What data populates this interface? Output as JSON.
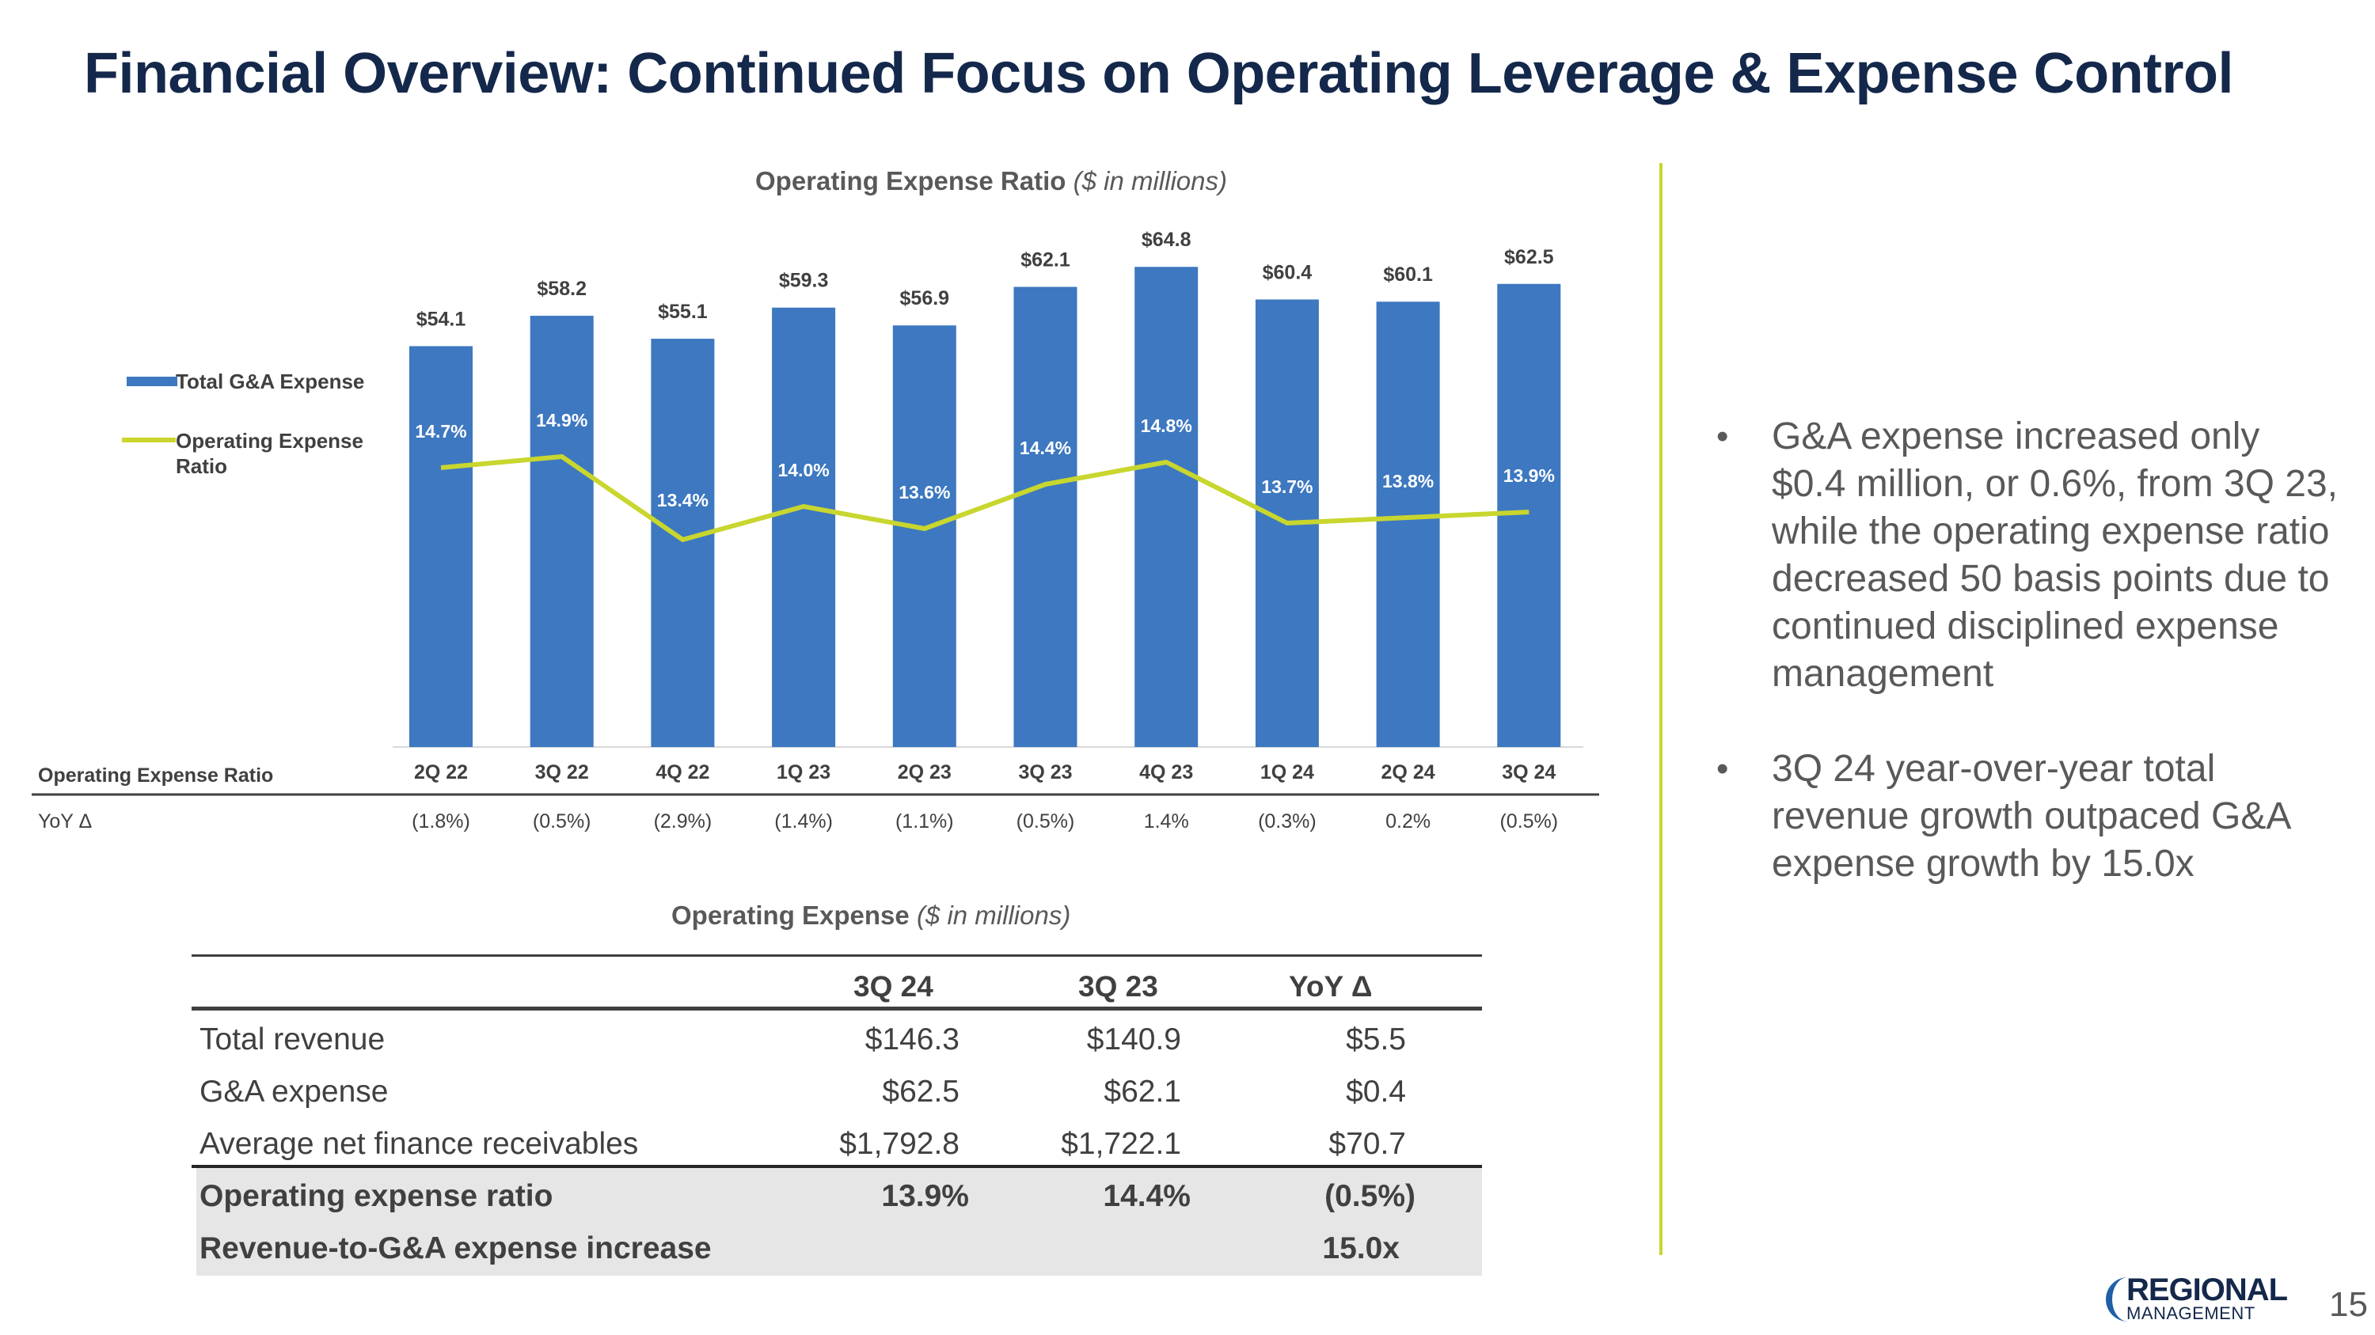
{
  "title": "Financial Overview: Continued Focus on Operating Leverage & Expense Control",
  "chart_title": {
    "main": "Operating Expense Ratio",
    "sub": "($ in millions)"
  },
  "chart_data": {
    "type": "bar",
    "categories": [
      "2Q 22",
      "3Q 22",
      "4Q 22",
      "1Q 23",
      "2Q 23",
      "3Q 23",
      "4Q 23",
      "1Q 24",
      "2Q 24",
      "3Q 24"
    ],
    "series": [
      {
        "name": "Total G&A Expense",
        "type": "bar",
        "color": "#3d78c0",
        "values": [
          54.1,
          58.2,
          55.1,
          59.3,
          56.9,
          62.1,
          64.8,
          60.4,
          60.1,
          62.5
        ],
        "labels": [
          "$54.1",
          "$58.2",
          "$55.1",
          "$59.3",
          "$56.9",
          "$62.1",
          "$64.8",
          "$60.4",
          "$60.1",
          "$62.5"
        ]
      },
      {
        "name": "Operating Expense Ratio",
        "type": "line",
        "color": "#c8d62e",
        "values": [
          14.7,
          14.9,
          13.4,
          14.0,
          13.6,
          14.4,
          14.8,
          13.7,
          13.8,
          13.9
        ],
        "labels": [
          "14.7%",
          "14.9%",
          "13.4%",
          "14.0%",
          "13.6%",
          "14.4%",
          "14.8%",
          "13.7%",
          "13.8%",
          "13.9%"
        ]
      }
    ],
    "ylim_bars": [
      0,
      66
    ],
    "ylim_line": [
      10,
      18
    ],
    "legend": [
      "Total G&A Expense",
      "Operating Expense Ratio"
    ],
    "row_header": "Operating Expense Ratio",
    "yoy_label": "YoY Δ",
    "yoy": [
      "(1.8%)",
      "(0.5%)",
      "(2.9%)",
      "(1.4%)",
      "(1.1%)",
      "(0.5%)",
      "1.4%",
      "(0.3%)",
      "0.2%",
      "(0.5%)"
    ]
  },
  "bullets": [
    "G&A expense increased only $0.4 million, or 0.6%, from 3Q 23, while the operating expense ratio decreased 50 basis points due to continued disciplined expense management",
    "3Q 24 year-over-year total revenue growth outpaced G&A expense growth by 15.0x"
  ],
  "table_title": {
    "main": "Operating Expense",
    "sub": "($ in millions)"
  },
  "table": {
    "headers": [
      "3Q 24",
      "3Q 23",
      "YoY Δ"
    ],
    "rows": [
      {
        "label": "Total revenue",
        "v1": "$146.3",
        "v2": "$140.9",
        "v3": "$5.5"
      },
      {
        "label": "G&A expense",
        "v1": "$62.5",
        "v2": "$62.1",
        "v3": "$0.4"
      },
      {
        "label": "Average net finance receivables",
        "v1": "$1,792.8",
        "v2": "$1,722.1",
        "v3": "$70.7"
      },
      {
        "label": "Operating expense ratio",
        "v1": "13.9%",
        "v2": "14.4%",
        "v3": "(0.5%)"
      },
      {
        "label": "Revenue-to-G&A expense increase",
        "v1": "",
        "v2": "",
        "v3": "15.0x"
      }
    ]
  },
  "logo": {
    "top": "REGIONAL",
    "bottom": "MANAGEMENT"
  },
  "page_number": "15"
}
